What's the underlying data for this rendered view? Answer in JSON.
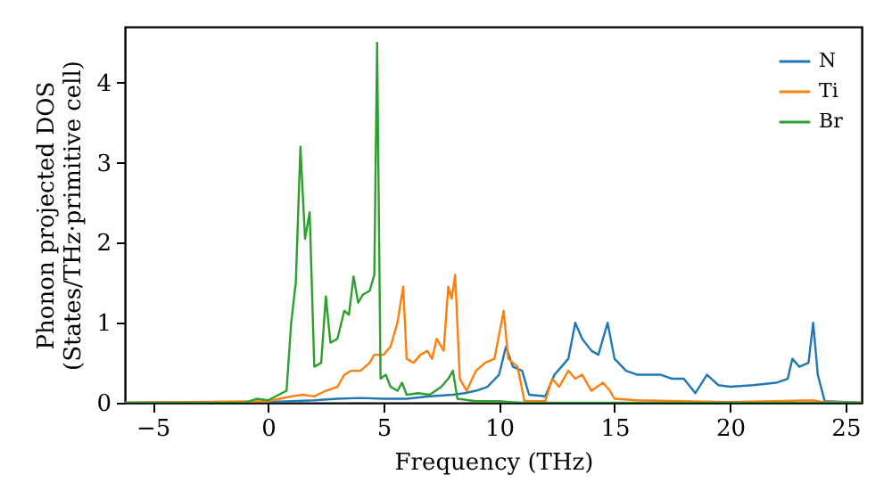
{
  "chart_data": {
    "type": "line",
    "xlabel": "Frequency (THz)",
    "ylabel": "Phonon projected DOS\n(States/THz·primitive cell)",
    "xlim": [
      -6.2,
      25.7
    ],
    "xticks": [
      -5,
      0,
      5,
      10,
      15,
      20,
      25
    ],
    "ylim": [
      0,
      4.7
    ],
    "yticks": [
      0,
      1,
      2,
      3,
      4
    ],
    "grid": false,
    "legend": "top right",
    "marker": "none",
    "line_style": "solid",
    "series": [
      {
        "name": "N",
        "color": "#1f77b4",
        "x": [
          -6.2,
          0,
          2,
          3,
          4,
          5,
          6,
          7,
          8,
          8.5,
          9,
          9.5,
          10,
          10.3,
          10.6,
          11,
          11.3,
          12,
          12.4,
          12.7,
          13,
          13.3,
          13.6,
          14,
          14.3,
          14.7,
          15,
          15.5,
          16,
          17,
          17.5,
          18,
          18.5,
          19,
          19.5,
          20,
          21,
          22,
          22.5,
          22.7,
          23,
          23.4,
          23.6,
          23.8,
          24.1,
          25.7
        ],
        "values": [
          0,
          0.01,
          0.03,
          0.05,
          0.06,
          0.05,
          0.05,
          0.08,
          0.1,
          0.12,
          0.15,
          0.2,
          0.35,
          0.7,
          0.45,
          0.4,
          0.1,
          0.08,
          0.35,
          0.45,
          0.55,
          1.0,
          0.8,
          0.65,
          0.6,
          1.0,
          0.55,
          0.4,
          0.35,
          0.35,
          0.3,
          0.3,
          0.12,
          0.35,
          0.22,
          0.2,
          0.22,
          0.25,
          0.3,
          0.55,
          0.45,
          0.5,
          1.0,
          0.35,
          0.02,
          0
        ]
      },
      {
        "name": "Ti",
        "color": "#ff7f0e",
        "x": [
          -6.2,
          0,
          0.5,
          1,
          1.5,
          2,
          2.5,
          3,
          3.3,
          3.6,
          4,
          4.4,
          4.6,
          5,
          5.3,
          5.6,
          5.85,
          6,
          6.3,
          6.6,
          6.9,
          7.1,
          7.3,
          7.6,
          7.8,
          7.95,
          8.1,
          8.3,
          8.6,
          9,
          9.4,
          9.8,
          10.2,
          10.4,
          10.8,
          11.1,
          12,
          12.3,
          12.6,
          13,
          13.3,
          13.6,
          14,
          14.5,
          14.8,
          15,
          16,
          20,
          23.6,
          24,
          25.7
        ],
        "values": [
          0,
          0.02,
          0.05,
          0.08,
          0.1,
          0.08,
          0.15,
          0.2,
          0.35,
          0.4,
          0.4,
          0.5,
          0.6,
          0.6,
          0.7,
          1.0,
          1.45,
          0.55,
          0.5,
          0.6,
          0.65,
          0.55,
          0.8,
          0.65,
          1.45,
          1.3,
          1.6,
          0.3,
          0.15,
          0.4,
          0.5,
          0.55,
          1.15,
          0.55,
          0.45,
          0.02,
          0.02,
          0.3,
          0.2,
          0.4,
          0.3,
          0.35,
          0.15,
          0.25,
          0.15,
          0.05,
          0.03,
          0.01,
          0.03,
          0.01,
          0
        ]
      },
      {
        "name": "Br",
        "color": "#2ca02c",
        "x": [
          -6.2,
          -1,
          -0.5,
          0,
          0.8,
          1,
          1.2,
          1.4,
          1.6,
          1.8,
          2,
          2.3,
          2.5,
          2.7,
          3,
          3.3,
          3.5,
          3.7,
          3.9,
          4.1,
          4.4,
          4.6,
          4.72,
          4.87,
          5.1,
          5.3,
          5.6,
          5.8,
          6,
          6.5,
          7,
          7.5,
          7.8,
          8,
          8.2,
          9,
          10,
          10.5,
          11,
          25.7
        ],
        "values": [
          0,
          0,
          0.05,
          0.03,
          0.15,
          1.0,
          1.5,
          3.2,
          2.05,
          2.38,
          0.45,
          0.5,
          1.33,
          0.75,
          0.8,
          1.15,
          1.1,
          1.58,
          1.25,
          1.35,
          1.4,
          1.6,
          4.5,
          0.3,
          0.35,
          0.2,
          0.15,
          0.25,
          0.1,
          0.12,
          0.1,
          0.2,
          0.3,
          0.4,
          0.05,
          0.02,
          0.02,
          0.01,
          0,
          0
        ]
      }
    ]
  }
}
